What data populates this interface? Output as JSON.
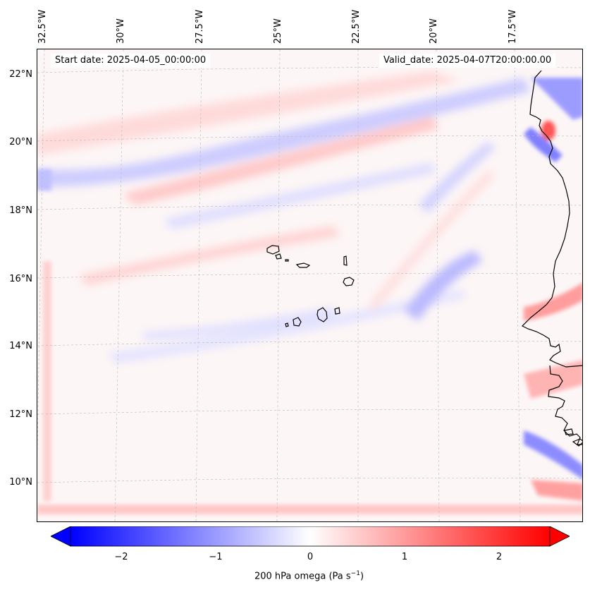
{
  "map": {
    "start_date": "Start date: 2025-04-05_00:00:00",
    "valid_date": "Valid_date: 2025-04-07T20:00:00.00",
    "lon_labels": [
      "32.5°W",
      "30°W",
      "27.5°W",
      "25°W",
      "22.5°W",
      "20°W",
      "17.5°W"
    ],
    "lat_labels": [
      "22°N",
      "20°N",
      "18°N",
      "16°N",
      "14°N",
      "12°N",
      "10°N"
    ]
  },
  "colorbar": {
    "ticks": [
      "−2",
      "−1",
      "0",
      "1",
      "2"
    ],
    "label": "200 hPa omega (Pa s",
    "label_sup": "−1",
    "label_end": ")",
    "min_color": "#0000ff",
    "mid_color": "#ffffff",
    "max_color": "#ff0000"
  }
}
